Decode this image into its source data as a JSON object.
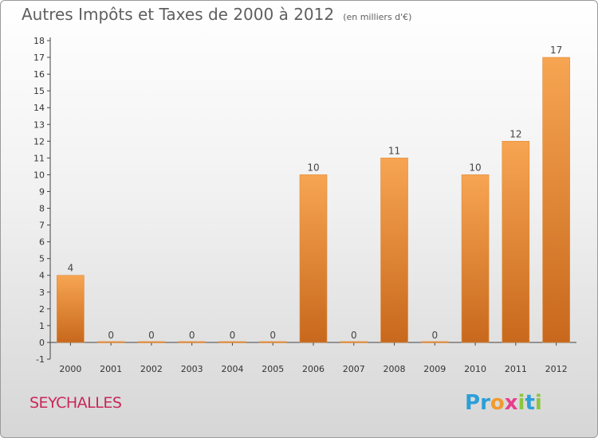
{
  "chart_data": {
    "type": "bar",
    "title": "Autres Impôts et Taxes de 2000 à 2012",
    "subtitle": "(en milliers d'€)",
    "categories": [
      "2000",
      "2001",
      "2002",
      "2003",
      "2004",
      "2005",
      "2006",
      "2007",
      "2008",
      "2009",
      "2010",
      "2011",
      "2012"
    ],
    "values": [
      4,
      0,
      0,
      0,
      0,
      0,
      10,
      0,
      11,
      0,
      10,
      12,
      17
    ],
    "ylim": [
      -1,
      18
    ],
    "yticks": [
      -1,
      0,
      1,
      2,
      3,
      4,
      5,
      6,
      7,
      8,
      9,
      10,
      11,
      12,
      13,
      14,
      15,
      16,
      17,
      18
    ],
    "grid": false,
    "bar_color": "#f0963f"
  },
  "commune": "SEYCHALLES",
  "logo": {
    "text": "Proxiti",
    "letters": [
      {
        "ch": "P",
        "color": "#2b9fd9"
      },
      {
        "ch": "r",
        "color": "#2b9fd9"
      },
      {
        "ch": "o",
        "color": "#f29a2e"
      },
      {
        "ch": "x",
        "color": "#e83e8c"
      },
      {
        "ch": "i",
        "color": "#8cc63f"
      },
      {
        "ch": "t",
        "color": "#2b9fd9"
      },
      {
        "ch": "i",
        "color": "#8cc63f"
      }
    ]
  }
}
